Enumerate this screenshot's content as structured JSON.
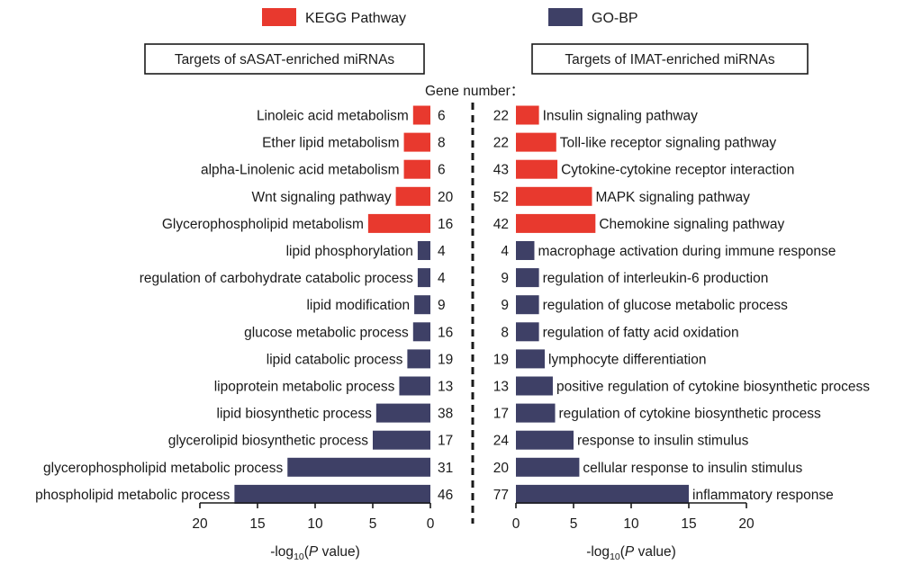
{
  "chart_data": {
    "type": "bar",
    "orientation": "horizontal",
    "layout": "back-to-back",
    "legend": {
      "placement": "top",
      "entries": [
        {
          "name": "KEGG Pathway",
          "color": "#e8392e"
        },
        {
          "name": "GO-BP",
          "color": "#3e4066"
        }
      ]
    },
    "gene_number_label": "Gene number：",
    "xlabel_parts": {
      "prefix": "-log",
      "subscript": "10",
      "open": "(",
      "italic": "P",
      "suffix": " value)"
    },
    "xlim": [
      0,
      20
    ],
    "xticks": [
      "0",
      "5",
      "10",
      "15",
      "20"
    ],
    "panels": [
      {
        "title": "Targets of sASAT-enriched miRNAs",
        "direction": "left",
        "bars": [
          {
            "label": "Linoleic acid metabolism",
            "value": 1.5,
            "genes": "6",
            "group": "KEGG Pathway"
          },
          {
            "label": "Ether lipid metabolism",
            "value": 2.3,
            "genes": "8",
            "group": "KEGG Pathway"
          },
          {
            "label": "alpha-Linolenic acid metabolism",
            "value": 2.3,
            "genes": "6",
            "group": "KEGG Pathway"
          },
          {
            "label": "Wnt signaling pathway",
            "value": 3.0,
            "genes": "20",
            "group": "KEGG Pathway"
          },
          {
            "label": "Glycerophospholipid metabolism",
            "value": 5.4,
            "genes": "16",
            "group": "KEGG Pathway"
          },
          {
            "label": "lipid phosphorylation",
            "value": 1.1,
            "genes": "4",
            "group": "GO-BP"
          },
          {
            "label": "regulation of carbohydrate catabolic process",
            "value": 1.1,
            "genes": "4",
            "group": "GO-BP"
          },
          {
            "label": "lipid modification",
            "value": 1.4,
            "genes": "9",
            "group": "GO-BP"
          },
          {
            "label": "glucose metabolic process",
            "value": 1.5,
            "genes": "16",
            "group": "GO-BP"
          },
          {
            "label": "lipid catabolic process",
            "value": 2.0,
            "genes": "19",
            "group": "GO-BP"
          },
          {
            "label": "lipoprotein metabolic process",
            "value": 2.7,
            "genes": "13",
            "group": "GO-BP"
          },
          {
            "label": "lipid biosynthetic process",
            "value": 4.7,
            "genes": "38",
            "group": "GO-BP"
          },
          {
            "label": "glycerolipid biosynthetic process",
            "value": 5.0,
            "genes": "17",
            "group": "GO-BP"
          },
          {
            "label": "glycerophospholipid metabolic process",
            "value": 12.4,
            "genes": "31",
            "group": "GO-BP"
          },
          {
            "label": "phospholipid metabolic process",
            "value": 17.0,
            "genes": "46",
            "group": "GO-BP"
          }
        ]
      },
      {
        "title": "Targets of IMAT-enriched miRNAs",
        "direction": "right",
        "bars": [
          {
            "label": "Insulin signaling pathway",
            "value": 2.0,
            "genes": "22",
            "group": "KEGG Pathway"
          },
          {
            "label": "Toll-like receptor signaling pathway",
            "value": 3.5,
            "genes": "22",
            "group": "KEGG Pathway"
          },
          {
            "label": "Cytokine-cytokine receptor interaction",
            "value": 3.6,
            "genes": "43",
            "group": "KEGG Pathway"
          },
          {
            "label": "MAPK signaling pathway",
            "value": 6.6,
            "genes": "52",
            "group": "KEGG Pathway"
          },
          {
            "label": "Chemokine signaling pathway",
            "value": 6.9,
            "genes": "42",
            "group": "KEGG Pathway"
          },
          {
            "label": "macrophage activation during immune response",
            "value": 1.6,
            "genes": "4",
            "group": "GO-BP"
          },
          {
            "label": "regulation of interleukin-6 production",
            "value": 2.0,
            "genes": "9",
            "group": "GO-BP"
          },
          {
            "label": "regulation of glucose metabolic process",
            "value": 2.0,
            "genes": "9",
            "group": "GO-BP"
          },
          {
            "label": "regulation of fatty acid oxidation",
            "value": 2.0,
            "genes": "8",
            "group": "GO-BP"
          },
          {
            "label": "lymphocyte differentiation",
            "value": 2.5,
            "genes": "19",
            "group": "GO-BP"
          },
          {
            "label": "positive regulation of cytokine biosynthetic process",
            "value": 3.2,
            "genes": "13",
            "group": "GO-BP"
          },
          {
            "label": "regulation of cytokine biosynthetic process",
            "value": 3.4,
            "genes": "17",
            "group": "GO-BP"
          },
          {
            "label": "response to insulin stimulus",
            "value": 5.0,
            "genes": "24",
            "group": "GO-BP"
          },
          {
            "label": "cellular response to insulin stimulus",
            "value": 5.5,
            "genes": "20",
            "group": "GO-BP"
          },
          {
            "label": "inflammatory response",
            "value": 15.0,
            "genes": "77",
            "group": "GO-BP"
          }
        ]
      }
    ]
  }
}
